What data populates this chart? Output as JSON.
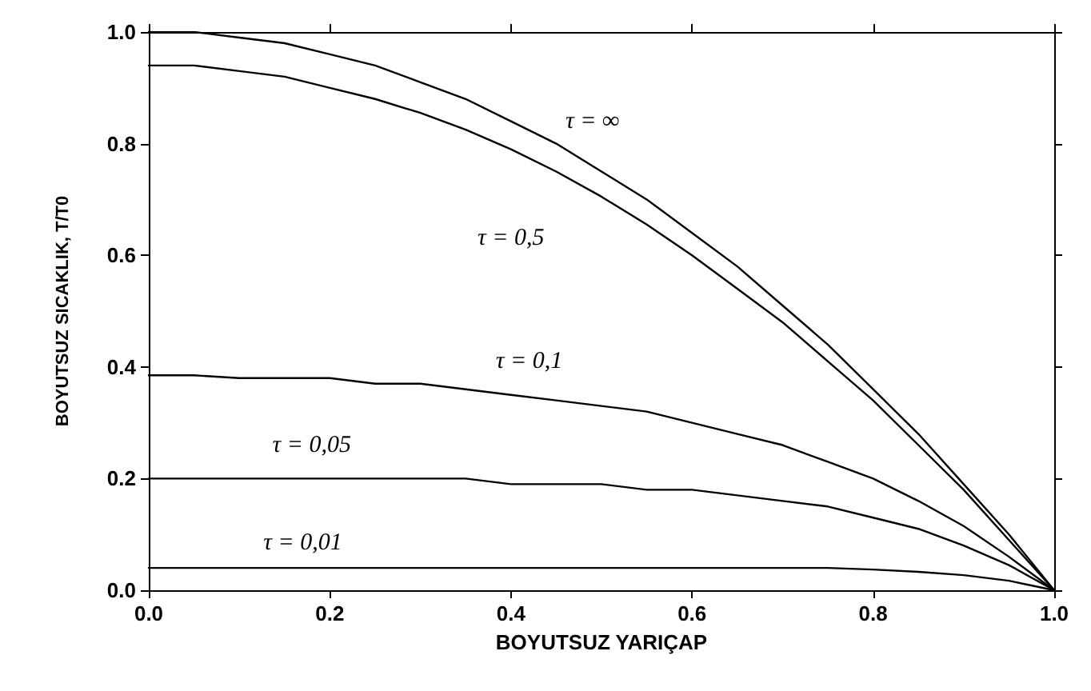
{
  "chart_data": {
    "type": "line",
    "xlabel": "BOYUTSUZ YARIÇAP",
    "ylabel": "BOYUTSUZ SICAKLIK, T/T0",
    "x": [
      0,
      0.05,
      0.1,
      0.15,
      0.2,
      0.25,
      0.3,
      0.35,
      0.4,
      0.45,
      0.5,
      0.55,
      0.6,
      0.65,
      0.7,
      0.75,
      0.8,
      0.85,
      0.9,
      0.95,
      1.0
    ],
    "series": [
      {
        "color": "#000000",
        "values": [
          1.0,
          1.0,
          0.99,
          0.98,
          0.96,
          0.94,
          0.91,
          0.88,
          0.84,
          0.8,
          0.75,
          0.7,
          0.64,
          0.58,
          0.51,
          0.44,
          0.36,
          0.28,
          0.19,
          0.1,
          0
        ]
      },
      {
        "color": "#000000",
        "values": [
          0.94,
          0.94,
          0.93,
          0.92,
          0.9,
          0.88,
          0.855,
          0.825,
          0.79,
          0.75,
          0.705,
          0.655,
          0.6,
          0.54,
          0.48,
          0.41,
          0.34,
          0.26,
          0.18,
          0.09,
          0
        ]
      },
      {
        "color": "#000000",
        "values": [
          0.385,
          0.385,
          0.38,
          0.38,
          0.38,
          0.37,
          0.37,
          0.36,
          0.35,
          0.34,
          0.33,
          0.32,
          0.3,
          0.28,
          0.26,
          0.23,
          0.2,
          0.16,
          0.115,
          0.06,
          0
        ]
      },
      {
        "color": "#000000",
        "values": [
          0.2,
          0.2,
          0.2,
          0.2,
          0.2,
          0.2,
          0.2,
          0.2,
          0.19,
          0.19,
          0.19,
          0.18,
          0.18,
          0.17,
          0.16,
          0.15,
          0.13,
          0.11,
          0.08,
          0.045,
          0
        ]
      },
      {
        "color": "#000000",
        "values": [
          0.04,
          0.04,
          0.04,
          0.04,
          0.04,
          0.04,
          0.04,
          0.04,
          0.04,
          0.04,
          0.04,
          0.04,
          0.04,
          0.04,
          0.04,
          0.04,
          0.037,
          0.033,
          0.027,
          0.017,
          0
        ]
      }
    ],
    "annotations": [
      "τ = ∞",
      "τ = 0,5",
      "τ = 0,1",
      "τ = 0,05",
      "τ = 0,01"
    ],
    "xlim": [
      0,
      1
    ],
    "xticks": [
      {
        "value": 0,
        "label": "0.0"
      },
      0.2,
      0.4,
      0.6,
      0.8,
      {
        "value": 1,
        "label": "1.0"
      }
    ],
    "ylim": [
      0,
      1
    ],
    "yticks": [
      {
        "value": 0,
        "label": "0.0"
      },
      0.2,
      0.4,
      0.6,
      0.8,
      {
        "value": 1,
        "label": "1.0"
      }
    ],
    "grid": false,
    "marker": "none",
    "line_style": "solid"
  }
}
